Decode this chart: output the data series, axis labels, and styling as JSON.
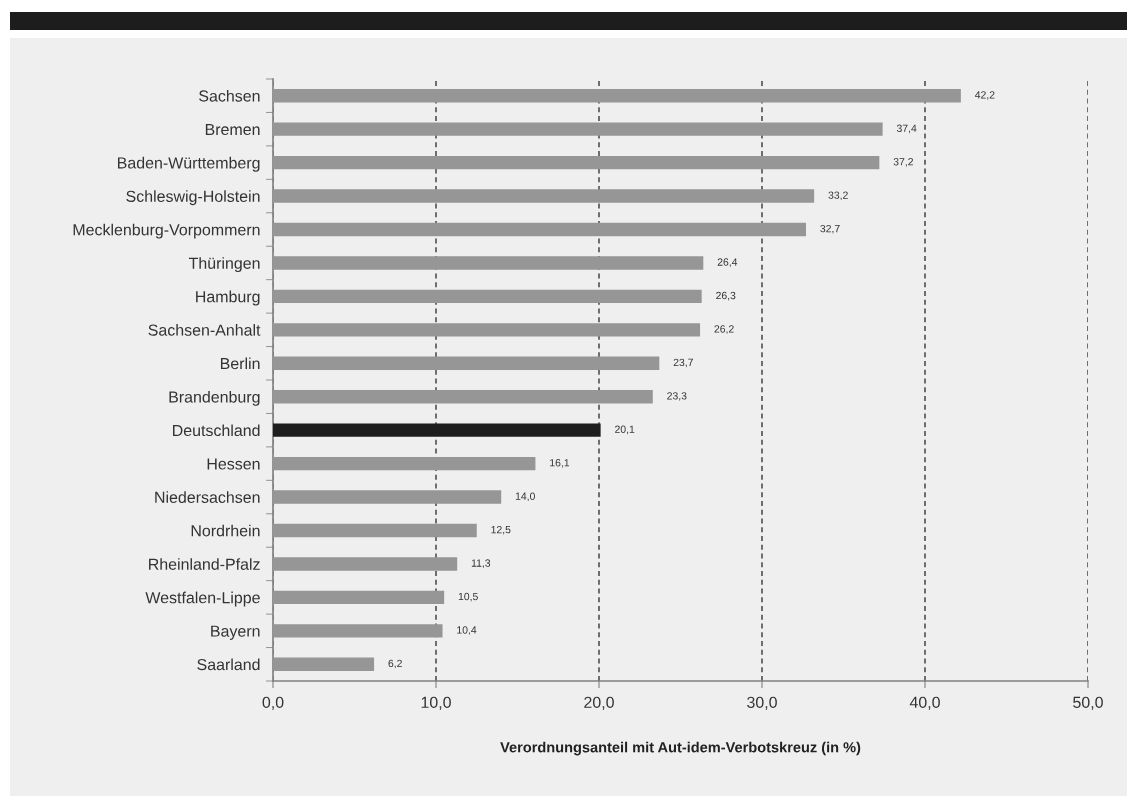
{
  "chart_data": {
    "type": "bar",
    "orientation": "horizontal",
    "categories": [
      "Sachsen",
      "Bremen",
      "Baden-Württemberg",
      "Schleswig-Holstein",
      "Mecklenburg-Vorpommern",
      "Thüringen",
      "Hamburg",
      "Sachsen-Anhalt",
      "Berlin",
      "Brandenburg",
      "Deutschland",
      "Hessen",
      "Niedersachsen",
      "Nordrhein",
      "Rheinland-Pfalz",
      "Westfalen-Lippe",
      "Bayern",
      "Saarland"
    ],
    "values": [
      42.2,
      37.4,
      37.2,
      33.2,
      32.7,
      26.4,
      26.3,
      26.2,
      23.7,
      23.3,
      20.1,
      16.1,
      14.0,
      12.5,
      11.3,
      10.5,
      10.4,
      6.2
    ],
    "colors": [
      "#969696",
      "#969696",
      "#969696",
      "#969696",
      "#969696",
      "#969696",
      "#969696",
      "#969696",
      "#969696",
      "#969696",
      "#1e1e1e",
      "#969696",
      "#969696",
      "#969696",
      "#969696",
      "#969696",
      "#969696",
      "#969696"
    ],
    "value_labels": [
      "42,2",
      "37,4",
      "37,2",
      "33,2",
      "32,7",
      "26,4",
      "26,3",
      "26,2",
      "23,7",
      "23,3",
      "20,1",
      "16,1",
      "14,0",
      "12,5",
      "11,3",
      "10,5",
      "10,4",
      "6,2"
    ],
    "xlim": [
      0,
      50
    ],
    "xticks": [
      {
        "value": 0,
        "label": "0,0"
      },
      {
        "value": 10,
        "label": "10,0"
      },
      {
        "value": 20,
        "label": "20,0"
      },
      {
        "value": 30,
        "label": "30,0"
      },
      {
        "value": 40,
        "label": "40,0"
      },
      {
        "value": 50,
        "label": "50,0"
      }
    ],
    "xlabel": "Verordnungsanteil mit Aut-idem-Verbotskreuz (in %)",
    "grid": "x"
  }
}
